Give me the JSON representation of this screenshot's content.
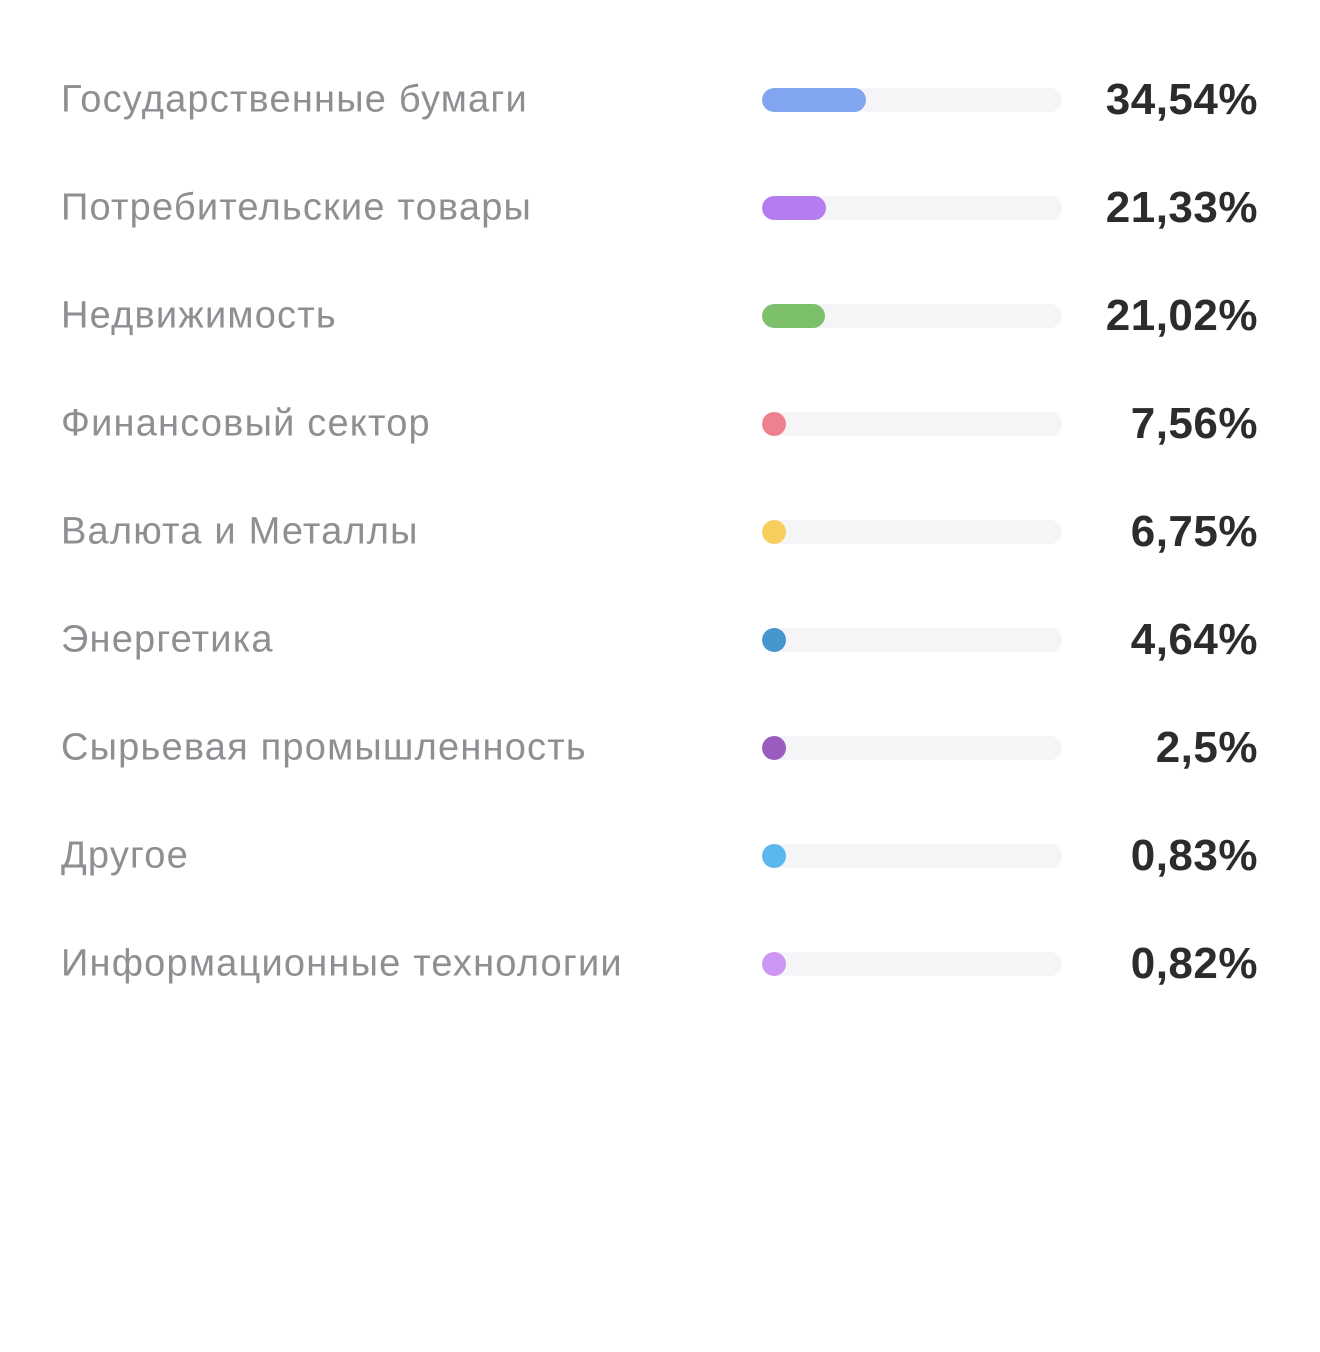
{
  "chart_data": {
    "type": "bar",
    "orientation": "horizontal",
    "categories": [
      "Государственные бумаги",
      "Потребительские товары",
      "Недвижимость",
      "Финансовый сектор",
      "Валюта и Металлы",
      "Энергетика",
      "Сырьевая промышленность",
      "Другое",
      "Информационные технологии"
    ],
    "values": [
      34.54,
      21.33,
      21.02,
      7.56,
      6.75,
      4.64,
      2.5,
      0.83,
      0.82
    ],
    "value_labels": [
      "34,54%",
      "21,33%",
      "21,02%",
      "7,56%",
      "6,75%",
      "4,64%",
      "2,5%",
      "0,83%",
      "0,82%"
    ],
    "colors": [
      "#7fa6ef",
      "#b57cf0",
      "#7cc06c",
      "#ef8090",
      "#f6cf5c",
      "#4596cc",
      "#9a5cbe",
      "#5ab8ee",
      "#cc96f5"
    ],
    "xlim": [
      0,
      100
    ],
    "grid": false,
    "legend": "none"
  },
  "track_color": "#f5f5f7",
  "label_color": "#8e8e93",
  "value_color": "#2c2c2e"
}
